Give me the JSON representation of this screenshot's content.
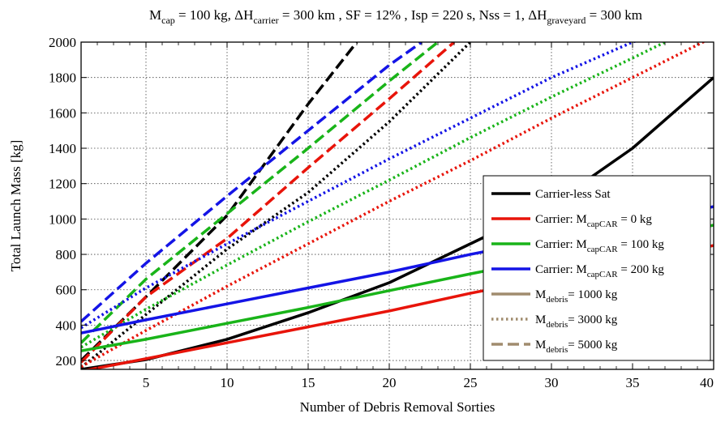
{
  "chart_data": {
    "type": "line",
    "title_parts": [
      {
        "t": "M"
      },
      {
        "t": "cap",
        "sub": true
      },
      {
        "t": " = 100 kg, ΔH"
      },
      {
        "t": "carrier",
        "sub": true
      },
      {
        "t": " = 300 km , SF = 12% , Isp = 220 s, Nss = 1, ΔH"
      },
      {
        "t": "graveyard",
        "sub": true
      },
      {
        "t": " = 300 km"
      }
    ],
    "xlabel": "Number of Debris Removal Sorties",
    "ylabel": "Total Launch Mass [kg]",
    "xlim": [
      1,
      40
    ],
    "ylim": [
      150,
      2000
    ],
    "xticks": [
      5,
      10,
      15,
      20,
      25,
      30,
      35,
      40
    ],
    "yticks": [
      200,
      400,
      600,
      800,
      1000,
      1200,
      1400,
      1600,
      1800,
      2000
    ],
    "grid": true,
    "legend_position": "right",
    "colors": {
      "black": "#000000",
      "red": "#e8140a",
      "green": "#19b419",
      "blue": "#1414e6",
      "brown": "#a08c6e"
    },
    "series": [
      {
        "color": "black",
        "style": "solid",
        "x": [
          1,
          5,
          10,
          15,
          20,
          25,
          30,
          35,
          40
        ],
        "y": [
          150,
          205,
          320,
          470,
          640,
          860,
          1080,
          1400,
          1800
        ]
      },
      {
        "color": "black",
        "style": "dotted",
        "x": [
          1,
          5,
          10,
          15,
          20,
          25
        ],
        "y": [
          160,
          460,
          830,
          1150,
          1550,
          2000
        ]
      },
      {
        "color": "black",
        "style": "dashed",
        "x": [
          1,
          5,
          10,
          15,
          18
        ],
        "y": [
          200,
          560,
          1020,
          1650,
          2000
        ]
      },
      {
        "color": "red",
        "style": "solid",
        "x": [
          1,
          5,
          10,
          15,
          20,
          25,
          30,
          35,
          40
        ],
        "y": [
          140,
          210,
          300,
          390,
          480,
          580,
          670,
          760,
          850
        ]
      },
      {
        "color": "red",
        "style": "dotted",
        "x": [
          1,
          5,
          10,
          15,
          20,
          25,
          30,
          35,
          40
        ],
        "y": [
          165,
          370,
          620,
          860,
          1100,
          1330,
          1570,
          1800,
          2030
        ]
      },
      {
        "color": "red",
        "style": "dashed",
        "x": [
          1,
          5,
          10,
          15,
          20,
          24
        ],
        "y": [
          190,
          560,
          890,
          1290,
          1680,
          2000
        ]
      },
      {
        "color": "green",
        "style": "solid",
        "x": [
          1,
          5,
          10,
          15,
          20,
          25,
          30,
          35,
          40
        ],
        "y": [
          255,
          320,
          410,
          500,
          595,
          690,
          780,
          870,
          965
        ]
      },
      {
        "color": "green",
        "style": "dotted",
        "x": [
          1,
          5,
          10,
          15,
          20,
          25,
          30,
          35,
          37
        ],
        "y": [
          275,
          490,
          740,
          985,
          1220,
          1460,
          1690,
          1910,
          2000
        ]
      },
      {
        "color": "green",
        "style": "dashed",
        "x": [
          1,
          5,
          10,
          15,
          20,
          23
        ],
        "y": [
          300,
          660,
          1030,
          1400,
          1780,
          2000
        ]
      },
      {
        "color": "blue",
        "style": "solid",
        "x": [
          1,
          5,
          10,
          15,
          20,
          25,
          30,
          35,
          40
        ],
        "y": [
          355,
          430,
          520,
          610,
          700,
          800,
          890,
          980,
          1070
        ]
      },
      {
        "color": "blue",
        "style": "dotted",
        "x": [
          1,
          5,
          10,
          15,
          20,
          25,
          30,
          35,
          36
        ],
        "y": [
          385,
          610,
          860,
          1100,
          1340,
          1570,
          1800,
          2000,
          2030
        ]
      },
      {
        "color": "blue",
        "style": "dashed",
        "x": [
          1,
          5,
          10,
          15,
          20,
          22
        ],
        "y": [
          420,
          750,
          1130,
          1500,
          1870,
          2000
        ]
      }
    ],
    "legend": [
      {
        "label_parts": [
          {
            "t": "Carrier-less Sat"
          }
        ],
        "color": "black",
        "style": "solid"
      },
      {
        "label_parts": [
          {
            "t": "Carrier: M"
          },
          {
            "t": "capCAR",
            "sub": true
          },
          {
            "t": " = 0 kg"
          }
        ],
        "color": "red",
        "style": "solid"
      },
      {
        "label_parts": [
          {
            "t": "Carrier: M"
          },
          {
            "t": "capCAR",
            "sub": true
          },
          {
            "t": " = 100 kg"
          }
        ],
        "color": "green",
        "style": "solid"
      },
      {
        "label_parts": [
          {
            "t": "Carrier: M"
          },
          {
            "t": "capCAR",
            "sub": true
          },
          {
            "t": " = 200 kg"
          }
        ],
        "color": "blue",
        "style": "solid"
      },
      {
        "label_parts": [
          {
            "t": "M"
          },
          {
            "t": "debris",
            "sub": true
          },
          {
            "t": "= 1000 kg"
          }
        ],
        "color": "brown",
        "style": "solid"
      },
      {
        "label_parts": [
          {
            "t": "M"
          },
          {
            "t": "debris",
            "sub": true
          },
          {
            "t": "= 3000 kg"
          }
        ],
        "color": "brown",
        "style": "dotted"
      },
      {
        "label_parts": [
          {
            "t": "M"
          },
          {
            "t": "debris",
            "sub": true
          },
          {
            "t": "= 5000 kg"
          }
        ],
        "color": "brown",
        "style": "dashed"
      }
    ]
  }
}
